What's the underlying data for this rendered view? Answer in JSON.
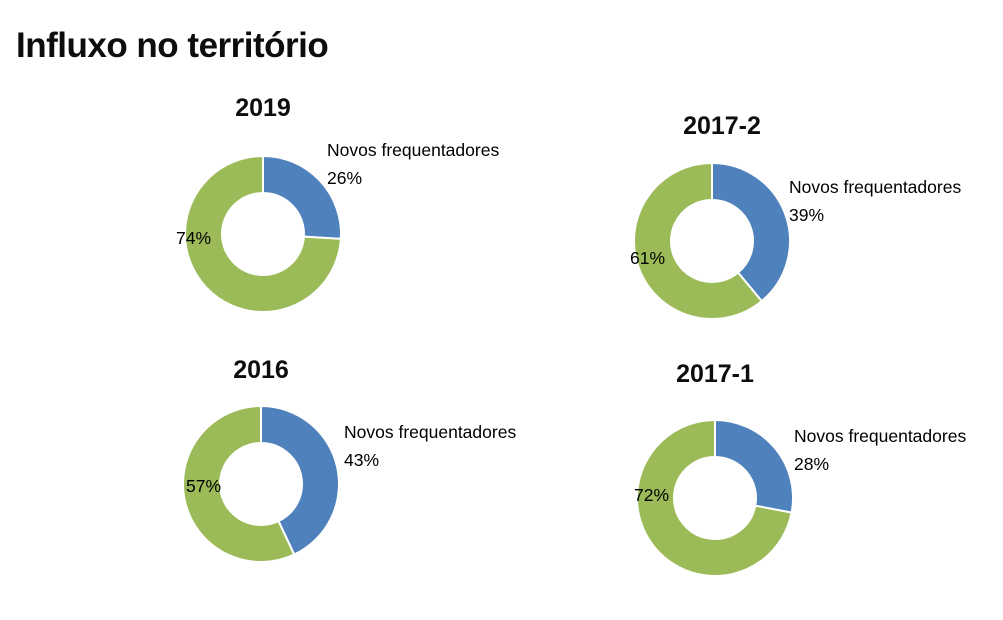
{
  "page_title": "Influxo no território",
  "palette": {
    "novos_frequentadores": "#4f81bd",
    "outros": "#9bbb59",
    "slice_gap": "#ffffff",
    "text": "#000000"
  },
  "chart_data": [
    {
      "type": "pie",
      "subtype": "donut",
      "title": "2019",
      "legend_position": "right-callout",
      "start_angle_deg": -90,
      "direction": "clockwise",
      "slices": [
        {
          "label": "Novos frequentadores",
          "pct": 26,
          "pct_label": "26%",
          "color": "#4f81bd"
        },
        {
          "label": "",
          "pct": 74,
          "pct_label": "74%",
          "color": "#9bbb59"
        }
      ]
    },
    {
      "type": "pie",
      "subtype": "donut",
      "title": "2017-2",
      "legend_position": "right-callout",
      "start_angle_deg": -90,
      "direction": "clockwise",
      "slices": [
        {
          "label": "Novos frequentadores",
          "pct": 39,
          "pct_label": "39%",
          "color": "#4f81bd"
        },
        {
          "label": "",
          "pct": 61,
          "pct_label": "61%",
          "color": "#9bbb59"
        }
      ]
    },
    {
      "type": "pie",
      "subtype": "donut",
      "title": "2016",
      "legend_position": "right-callout",
      "start_angle_deg": -90,
      "direction": "clockwise",
      "slices": [
        {
          "label": "Novos frequentadores",
          "pct": 43,
          "pct_label": "43%",
          "color": "#4f81bd"
        },
        {
          "label": "",
          "pct": 57,
          "pct_label": "57%",
          "color": "#9bbb59"
        }
      ]
    },
    {
      "type": "pie",
      "subtype": "donut",
      "title": "2017-1",
      "legend_position": "right-callout",
      "start_angle_deg": -90,
      "direction": "clockwise",
      "slices": [
        {
          "label": "Novos frequentadores",
          "pct": 28,
          "pct_label": "28%",
          "color": "#4f81bd"
        },
        {
          "label": "",
          "pct": 72,
          "pct_label": "72%",
          "color": "#9bbb59"
        }
      ]
    }
  ]
}
